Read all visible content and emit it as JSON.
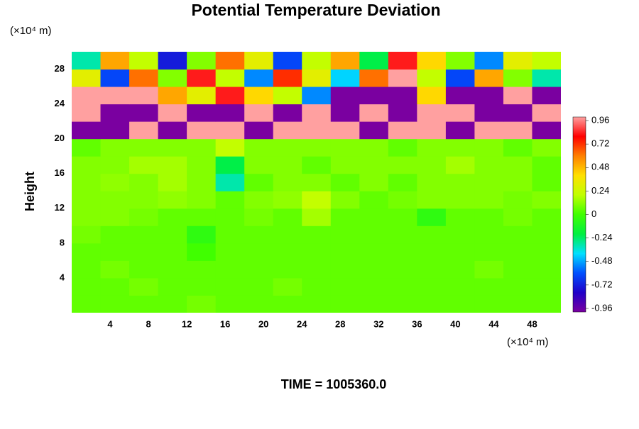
{
  "chart_data": {
    "type": "heatmap",
    "title": "Potential Temperature Deviation",
    "y_label": "Height",
    "x_unit_label": "(×10⁴ m)",
    "y_unit_label": "(×10⁴ m)",
    "annotation": "TIME = 1005360.0",
    "x": [
      1.5,
      4.5,
      7.5,
      10.5,
      13.5,
      16.5,
      19.5,
      22.5,
      25.5,
      28.5,
      31.5,
      34.5,
      37.5,
      40.5,
      43.5,
      46.5,
      49.5
    ],
    "y": [
      1,
      3,
      5,
      7,
      9,
      11,
      13,
      15,
      17,
      19,
      21,
      23,
      25,
      27,
      29
    ],
    "z": [
      [
        0.05,
        0.05,
        0.05,
        0.05,
        0.08,
        0.05,
        0.05,
        0.05,
        0.05,
        0.05,
        0.05,
        0.05,
        0.05,
        0.05,
        0.05,
        0.05,
        0.05
      ],
      [
        0.05,
        0.05,
        0.08,
        0.05,
        0.05,
        0.05,
        0.05,
        0.08,
        0.05,
        0.05,
        0.05,
        0.05,
        0.05,
        0.05,
        0.05,
        0.05,
        0.05
      ],
      [
        0.05,
        0.08,
        0.05,
        0.05,
        0.05,
        0.05,
        0.05,
        0.05,
        0.05,
        0.05,
        0.05,
        0.05,
        0.05,
        0.05,
        0.08,
        0.05,
        0.05
      ],
      [
        0.05,
        0.05,
        0.05,
        0.05,
        0.0,
        0.05,
        0.05,
        0.05,
        0.05,
        0.05,
        0.05,
        0.05,
        0.05,
        0.05,
        0.05,
        0.05,
        0.05
      ],
      [
        0.08,
        0.05,
        0.05,
        0.05,
        -0.05,
        0.05,
        0.05,
        0.05,
        0.05,
        0.05,
        0.05,
        0.05,
        0.05,
        0.05,
        0.05,
        0.05,
        0.05
      ],
      [
        0.1,
        0.1,
        0.08,
        0.05,
        0.05,
        0.05,
        0.08,
        0.05,
        0.15,
        0.05,
        0.05,
        0.05,
        -0.05,
        0.05,
        0.05,
        0.08,
        0.05
      ],
      [
        0.1,
        0.1,
        0.1,
        0.12,
        0.1,
        0.05,
        0.1,
        0.12,
        0.2,
        0.1,
        0.05,
        0.08,
        0.1,
        0.1,
        0.1,
        0.08,
        0.1
      ],
      [
        0.1,
        0.12,
        0.1,
        0.15,
        0.1,
        -0.3,
        0.05,
        0.1,
        0.1,
        0.05,
        0.1,
        0.05,
        0.1,
        0.1,
        0.1,
        0.1,
        0.05
      ],
      [
        0.1,
        0.1,
        0.15,
        0.15,
        0.1,
        -0.2,
        0.1,
        0.1,
        0.05,
        0.1,
        0.1,
        0.1,
        0.1,
        0.15,
        0.1,
        0.1,
        0.05
      ],
      [
        0.05,
        0.1,
        0.1,
        0.1,
        0.1,
        0.2,
        0.1,
        0.1,
        0.1,
        0.1,
        0.1,
        0.05,
        0.1,
        0.1,
        0.1,
        0.05,
        0.1
      ],
      [
        -0.96,
        -0.96,
        0.96,
        -0.96,
        0.96,
        0.96,
        -0.96,
        0.96,
        0.96,
        0.96,
        -0.96,
        0.96,
        0.96,
        -0.96,
        0.96,
        0.96,
        -0.96
      ],
      [
        0.96,
        -0.96,
        -0.96,
        0.96,
        -0.96,
        -0.96,
        0.96,
        -0.96,
        0.96,
        -0.96,
        0.96,
        -0.96,
        0.96,
        0.96,
        -0.96,
        -0.96,
        0.96
      ],
      [
        0.96,
        0.96,
        0.96,
        0.5,
        0.3,
        0.8,
        0.4,
        0.2,
        -0.5,
        -0.96,
        -0.96,
        -0.96,
        0.4,
        -0.96,
        -0.96,
        0.96,
        -0.96
      ],
      [
        0.3,
        -0.6,
        0.6,
        0.1,
        0.8,
        0.2,
        -0.5,
        0.7,
        0.3,
        -0.4,
        0.6,
        0.96,
        0.2,
        -0.6,
        0.5,
        0.1,
        -0.3
      ],
      [
        -0.3,
        0.5,
        0.2,
        -0.7,
        0.1,
        0.6,
        0.3,
        -0.6,
        0.2,
        0.5,
        -0.2,
        0.8,
        0.4,
        0.1,
        -0.5,
        0.3,
        0.2
      ]
    ],
    "xlim": [
      0,
      51
    ],
    "ylim": [
      0,
      30
    ],
    "xticks": [
      4,
      8,
      12,
      16,
      20,
      24,
      28,
      32,
      36,
      40,
      44,
      48
    ],
    "yticks": [
      4,
      8,
      12,
      16,
      20,
      24,
      28
    ],
    "zlim": [
      -0.96,
      0.96
    ],
    "zticks": [
      0.96,
      0.72,
      0.48,
      0.24,
      0,
      -0.24,
      -0.48,
      -0.72,
      -0.96
    ],
    "colorscale": [
      "#7a00a0",
      "#2000c8",
      "#0050ff",
      "#00e0ff",
      "#00f040",
      "#40ff00",
      "#c0ff00",
      "#ffe000",
      "#ff8000",
      "#ff0000",
      "#ffa0a0"
    ]
  }
}
